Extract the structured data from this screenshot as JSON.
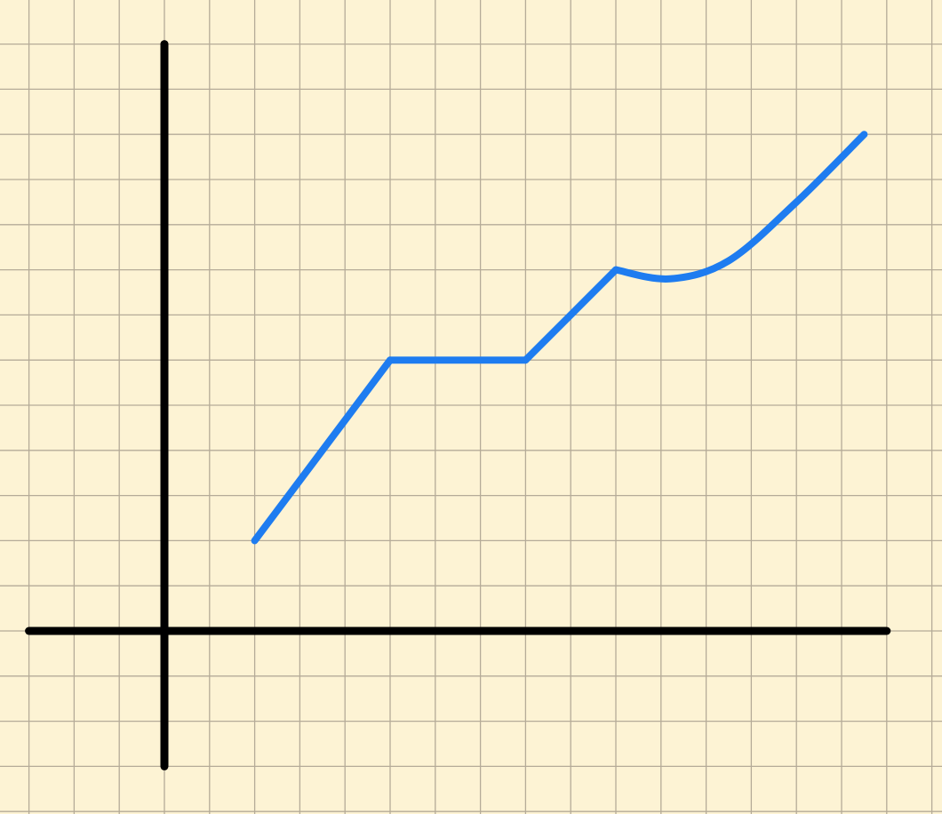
{
  "colors": {
    "background": "#fdf3d4",
    "grid": "#b5ab98",
    "axis": "#000000",
    "line": "#1e7cf0"
  },
  "chart_data": {
    "type": "line",
    "title": "",
    "xlabel": "",
    "ylabel": "",
    "grid": true,
    "xlim": [
      -3,
      16
    ],
    "ylim": [
      -3,
      13
    ],
    "series": [
      {
        "segments": [
          {
            "kind": "linear",
            "points": [
              [
                2,
                2
              ],
              [
                5,
                6
              ]
            ]
          },
          {
            "kind": "linear",
            "points": [
              [
                5,
                6
              ],
              [
                8,
                6
              ]
            ]
          },
          {
            "kind": "linear",
            "points": [
              [
                8,
                6
              ],
              [
                10,
                8
              ]
            ]
          },
          {
            "kind": "curve",
            "points": [
              [
                10,
                8
              ],
              [
                11.2,
                7.8
              ],
              [
                12.5,
                8.2
              ],
              [
                14,
                9.5
              ],
              [
                15.5,
                11
              ]
            ]
          }
        ]
      }
    ]
  }
}
